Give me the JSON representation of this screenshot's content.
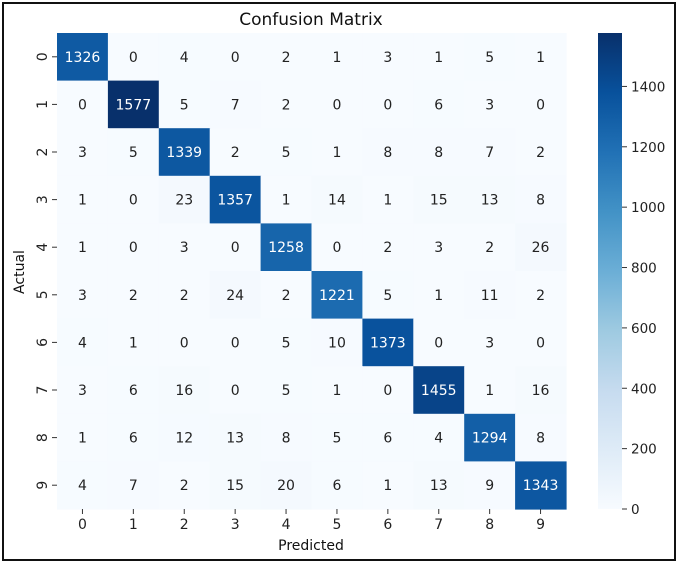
{
  "chart_data": {
    "type": "heatmap",
    "title": "Confusion Matrix",
    "xlabel": "Predicted",
    "ylabel": "Actual",
    "x_labels": [
      "0",
      "1",
      "2",
      "3",
      "4",
      "5",
      "6",
      "7",
      "8",
      "9"
    ],
    "y_labels": [
      "0",
      "1",
      "2",
      "3",
      "4",
      "5",
      "6",
      "7",
      "8",
      "9"
    ],
    "matrix": [
      [
        1326,
        0,
        4,
        0,
        2,
        1,
        3,
        1,
        5,
        1
      ],
      [
        0,
        1577,
        5,
        7,
        2,
        0,
        0,
        6,
        3,
        0
      ],
      [
        3,
        5,
        1339,
        2,
        5,
        1,
        8,
        8,
        7,
        2
      ],
      [
        1,
        0,
        23,
        1357,
        1,
        14,
        1,
        15,
        13,
        8
      ],
      [
        1,
        0,
        3,
        0,
        1258,
        0,
        2,
        3,
        2,
        26
      ],
      [
        3,
        2,
        2,
        24,
        2,
        1221,
        5,
        1,
        11,
        2
      ],
      [
        4,
        1,
        0,
        0,
        5,
        10,
        1373,
        0,
        3,
        0
      ],
      [
        3,
        6,
        16,
        0,
        5,
        1,
        0,
        1455,
        1,
        16
      ],
      [
        1,
        6,
        12,
        13,
        8,
        5,
        6,
        4,
        1294,
        8
      ],
      [
        4,
        7,
        2,
        15,
        20,
        6,
        1,
        13,
        9,
        1343
      ]
    ],
    "colormap": "Blues",
    "colors": {
      "low": "#f7fbff",
      "high": "#08306b"
    },
    "colorbar": {
      "range": [
        0,
        1577
      ],
      "ticks": [
        0,
        200,
        400,
        600,
        800,
        1000,
        1200,
        1400
      ]
    },
    "grid": false,
    "legend": "colorbar-right"
  }
}
